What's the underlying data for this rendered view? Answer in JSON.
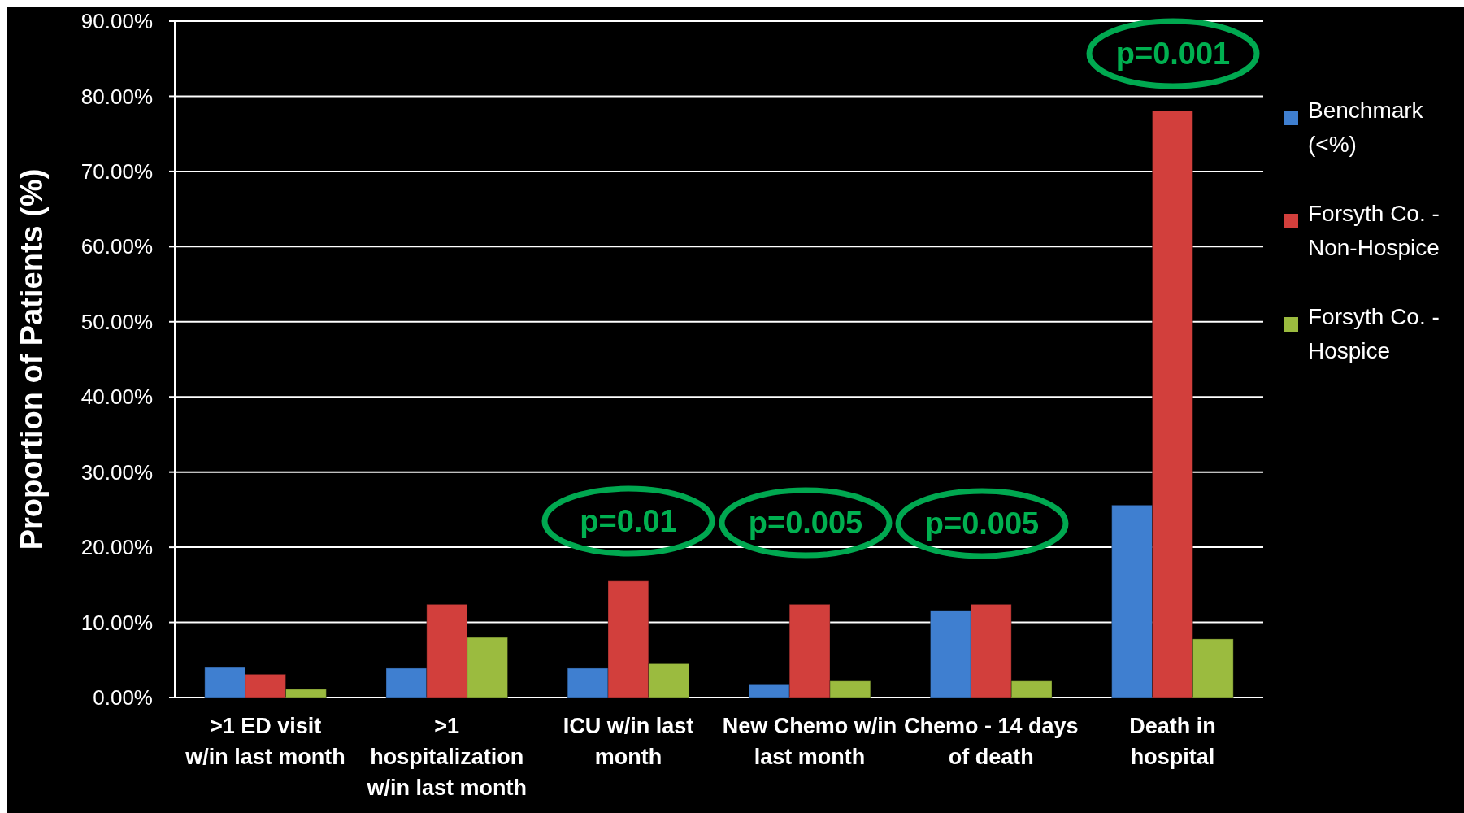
{
  "chart_data": {
    "type": "bar",
    "ylabel": "Proportion of Patients (%)",
    "categories": [
      ">1 ED visit w/in last month",
      ">1 hospitalization w/in last month",
      "ICU w/in last month",
      "New Chemo w/in last month",
      "Chemo - 14 days of death",
      "Death in hospital"
    ],
    "series": [
      {
        "name": "Benchmark (<%)",
        "color": "#3f7fd0",
        "values": [
          4.0,
          3.9,
          3.9,
          1.8,
          11.6,
          25.6
        ]
      },
      {
        "name": "Forsyth Co. - Non-Hospice",
        "color": "#d23f3c",
        "values": [
          3.1,
          12.4,
          15.5,
          12.4,
          12.4,
          78.1
        ]
      },
      {
        "name": "Forsyth Co. - Hospice",
        "color": "#9bbb3f",
        "values": [
          1.1,
          8.0,
          4.5,
          2.2,
          2.2,
          7.8
        ]
      }
    ],
    "ylim": [
      0,
      90
    ],
    "yticks": [
      {
        "value": 0,
        "label": "0.00%"
      },
      {
        "value": 10,
        "label": "10.00%"
      },
      {
        "value": 20,
        "label": "20.00%"
      },
      {
        "value": 30,
        "label": "30.00%"
      },
      {
        "value": 40,
        "label": "40.00%"
      },
      {
        "value": 50,
        "label": "50.00%"
      },
      {
        "value": 60,
        "label": "60.00%"
      },
      {
        "value": 70,
        "label": "70.00%"
      },
      {
        "value": 80,
        "label": "80.00%"
      },
      {
        "value": 90,
        "label": "90.00%"
      }
    ],
    "grid": "y",
    "legend": "right",
    "annotations": [
      "p=0.01",
      "p=0.005",
      "p=0.005",
      "p=0.001"
    ]
  }
}
